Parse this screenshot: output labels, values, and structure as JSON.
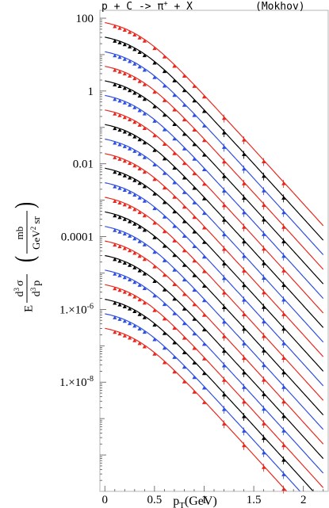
{
  "chart_data": {
    "type": "scatter",
    "title_left": "p  +  C  ->  π",
    "title_sup": "+",
    "title_right": "  +  X",
    "source_tag": "(Mokhov)",
    "xlabel": {
      "main": "p",
      "sub": "T",
      "rest": "(GeV)"
    },
    "ylabel": {
      "lead": "E",
      "num": {
        "d": "d",
        "exp": "3",
        "sym": "σ"
      },
      "den": {
        "d": "d",
        "exp": "3",
        "sym": "p"
      },
      "unit_num": "mb",
      "unit_den": {
        "a": "GeV",
        "exp": "2",
        "b": " sr"
      }
    },
    "xlim": [
      -0.05,
      2.25
    ],
    "ylim_log10": [
      -11,
      2
    ],
    "log_scale_y": true,
    "grid": false,
    "x_ticks": [
      {
        "v": 0,
        "label": "0"
      },
      {
        "v": 0.5,
        "label": "0.5"
      },
      {
        "v": 1,
        "label": "1"
      },
      {
        "v": 1.5,
        "label": "1.5"
      },
      {
        "v": 2,
        "label": "2"
      }
    ],
    "y_ticks": [
      {
        "exp": 2,
        "label": "100"
      },
      {
        "exp": 0,
        "label": "1"
      },
      {
        "exp": -2,
        "label": "0.01"
      },
      {
        "exp": -4,
        "label": "0.0001"
      },
      {
        "exp": -6,
        "label": "1.×10",
        "sup": "-6"
      },
      {
        "exp": -8,
        "label": "1.×10",
        "sup": "-8"
      }
    ],
    "n_series": 22,
    "series_colors": [
      "#e8281e",
      "#000000",
      "#2f4fe0"
    ],
    "series_description": "Each series i (0 = top) : model curve plus triangle data points; scaled down by a factor 10^(-0.4 i)",
    "top_curve_log10_at_x0": 2.0,
    "curve_shape": {
      "plateau_end_x": 0.3,
      "slope_per_GeV": -3.0,
      "knee_smoothness": 0.2
    },
    "data_x": [
      0.1,
      0.15,
      0.2,
      0.25,
      0.3,
      0.35,
      0.4,
      0.5,
      0.6,
      0.7,
      0.8,
      0.9,
      1.0,
      1.2,
      1.4,
      1.6,
      1.8
    ]
  }
}
